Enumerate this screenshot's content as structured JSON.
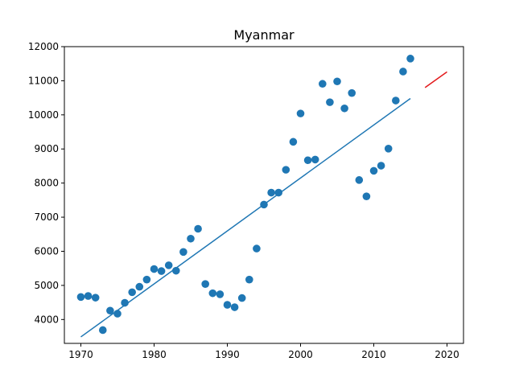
{
  "chart_data": {
    "type": "scatter",
    "title": "Myanmar",
    "xlabel": "",
    "ylabel": "",
    "xlim": [
      1967.75,
      2022.25
    ],
    "ylim": [
      3300,
      12000
    ],
    "xticks": [
      1970,
      1980,
      1990,
      2000,
      2010,
      2020
    ],
    "yticks": [
      4000,
      5000,
      6000,
      7000,
      8000,
      9000,
      10000,
      11000,
      12000
    ],
    "grid": false,
    "series": [
      {
        "kind": "scatter",
        "color": "#1f77b4",
        "x": [
          1970,
          1971,
          1972,
          1973,
          1974,
          1975,
          1976,
          1977,
          1978,
          1979,
          1980,
          1981,
          1982,
          1983,
          1984,
          1985,
          1986,
          1987,
          1988,
          1989,
          1990,
          1991,
          1992,
          1993,
          1994,
          1995,
          1996,
          1997,
          1998,
          1999,
          2000,
          2001,
          2002,
          2003,
          2004,
          2005,
          2006,
          2007,
          2008,
          2009,
          2010,
          2011,
          2012,
          2013,
          2014,
          2015
        ],
        "y": [
          4660,
          4690,
          4640,
          3690,
          4260,
          4170,
          4490,
          4800,
          4960,
          5170,
          5480,
          5420,
          5590,
          5430,
          5980,
          6370,
          6660,
          5040,
          4770,
          4740,
          4430,
          4360,
          4630,
          5170,
          6080,
          7370,
          7720,
          7720,
          8390,
          9210,
          10040,
          8670,
          8690,
          10910,
          10370,
          10980,
          10190,
          10640,
          8090,
          7610,
          8360,
          8510,
          9010,
          10420,
          11270,
          11650
        ]
      },
      {
        "kind": "line",
        "color": "#1f77b4",
        "x": [
          1970,
          2015
        ],
        "y": [
          3490,
          10480
        ]
      },
      {
        "kind": "line",
        "color": "#e31a1c",
        "x": [
          2017,
          2020
        ],
        "y": [
          10800,
          11260
        ]
      }
    ]
  }
}
